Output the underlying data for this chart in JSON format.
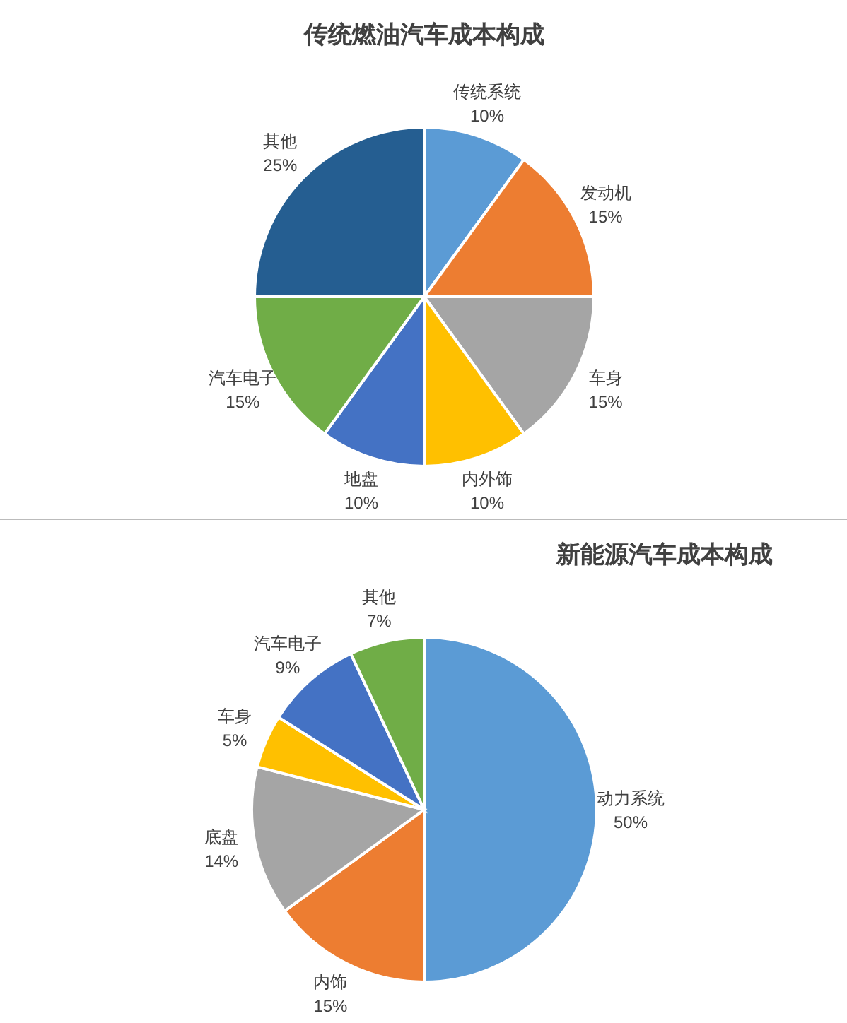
{
  "chart_data": [
    {
      "type": "pie",
      "title": "传统燃油汽车成本构成",
      "categories": [
        "传统系统",
        "发动机",
        "车身",
        "内外饰",
        "地盘",
        "汽车电子",
        "其他"
      ],
      "values": [
        10,
        15,
        15,
        10,
        10,
        15,
        25
      ],
      "value_labels": [
        "10%",
        "15%",
        "15%",
        "10%",
        "10%",
        "15%",
        "25%"
      ],
      "colors": [
        "#5b9bd5",
        "#ed7d31",
        "#a5a5a5",
        "#ffc000",
        "#4472c4",
        "#70ad47",
        "#255e91"
      ]
    },
    {
      "type": "pie",
      "title": "新能源汽车成本构成",
      "categories": [
        "动力系统",
        "内饰",
        "底盘",
        "车身",
        "汽车电子",
        "其他"
      ],
      "values": [
        50,
        15,
        14,
        5,
        9,
        7
      ],
      "value_labels": [
        "50%",
        "15%",
        "14%",
        "5%",
        "9%",
        "7%"
      ],
      "colors": [
        "#5b9bd5",
        "#ed7d31",
        "#a5a5a5",
        "#ffc000",
        "#4472c4",
        "#70ad47"
      ]
    }
  ]
}
